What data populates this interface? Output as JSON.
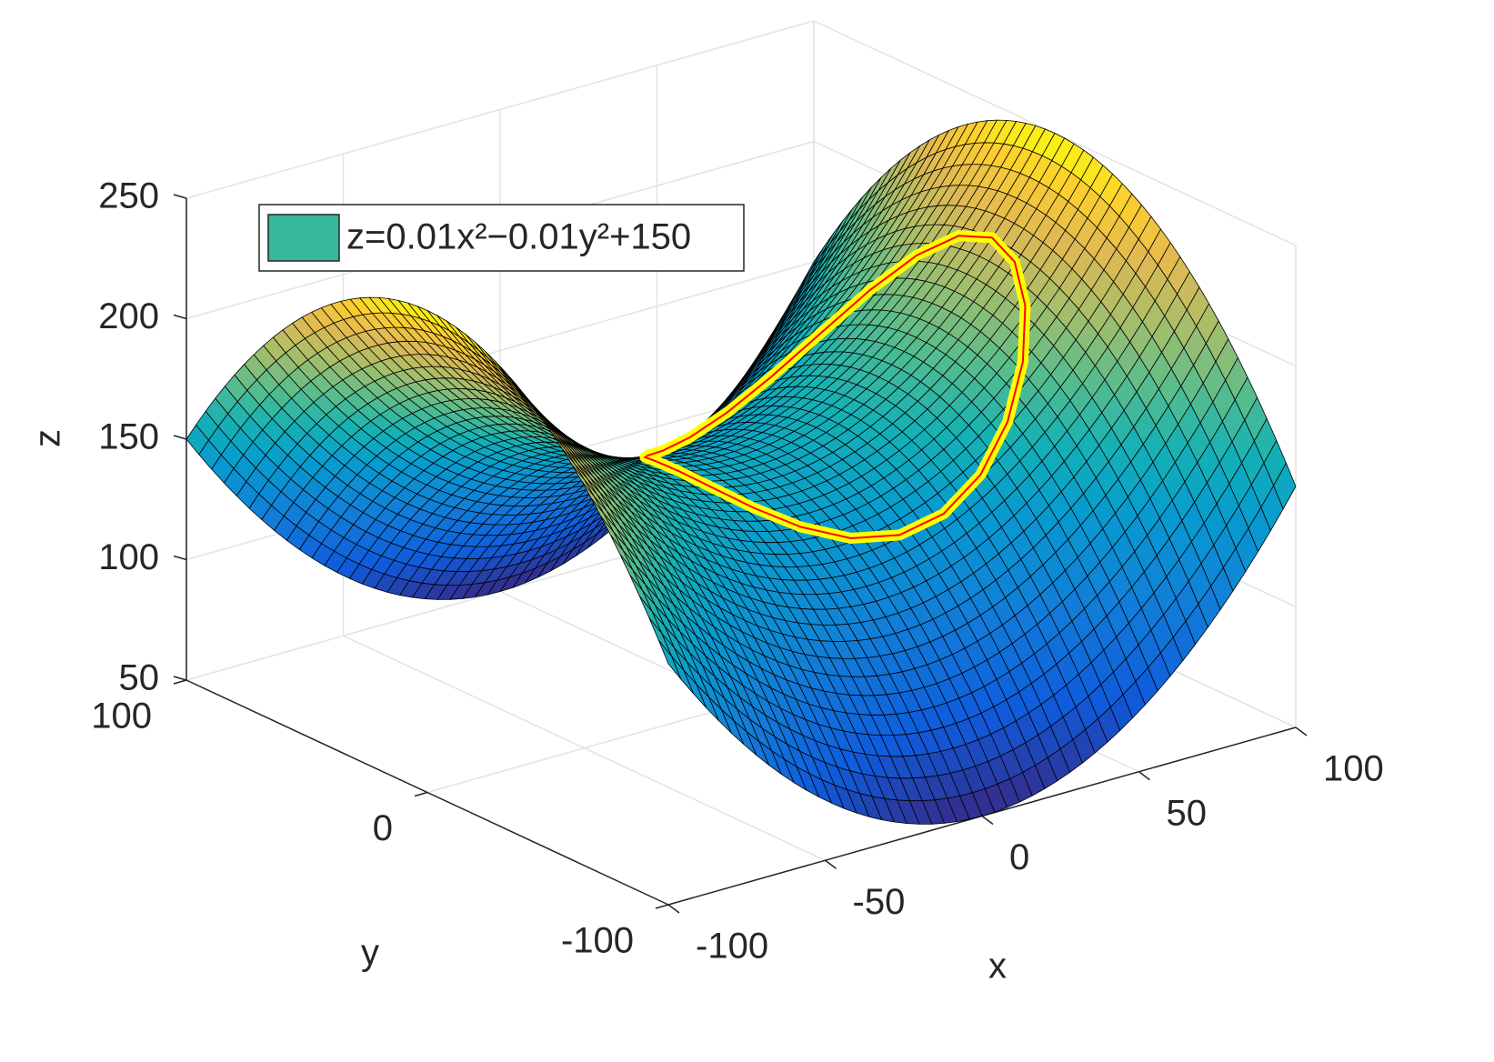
{
  "chart_data": {
    "type": "surface3d",
    "xlabel": "x",
    "ylabel": "y",
    "zlabel": "z",
    "xlim": [
      -100,
      100
    ],
    "ylim": [
      -100,
      100
    ],
    "zlim": [
      50,
      250
    ],
    "xticks": [
      -100,
      -50,
      0,
      50,
      100
    ],
    "yticks": [
      -100,
      0,
      100
    ],
    "zticks": [
      50,
      100,
      150,
      200,
      250
    ],
    "grid": true,
    "legend": "upper left",
    "surface": {
      "name": "z=0.01x²−0.01y²+150",
      "color": "#36b89c",
      "coefficients": [
        0.01,
        -0.01,
        150
      ],
      "mesh": 50,
      "colormap": "parula",
      "edge_color": "#000000"
    },
    "curve": {
      "color": "#ffff00",
      "edge_color": "#ff0000",
      "x": [
        80,
        78.3,
        73.3,
        65.4,
        55,
        42.9,
        30,
        17.1,
        5,
        -5.4,
        -13.3,
        -18.3,
        -20,
        -18.3,
        -13.3,
        -5.4,
        5,
        17.1,
        30,
        42.9,
        55,
        65.4,
        73.3,
        78.3
      ],
      "y": [
        0,
        11.6,
        22.5,
        31.8,
        39,
        43.5,
        45,
        43.5,
        39,
        31.8,
        22.5,
        11.6,
        0,
        -11.6,
        -22.5,
        -31.8,
        -39,
        -43.5,
        -45,
        -43.5,
        -39,
        -31.8,
        -22.5,
        -11.6
      ],
      "z": [
        214,
        210,
        198.7,
        182.7,
        165,
        149.5,
        138.8,
        134,
        135,
        140.2,
        146.7,
        152,
        154,
        152,
        146.7,
        140.2,
        135,
        134,
        138.8,
        149.5,
        165,
        182.7,
        198.7,
        210
      ]
    }
  }
}
